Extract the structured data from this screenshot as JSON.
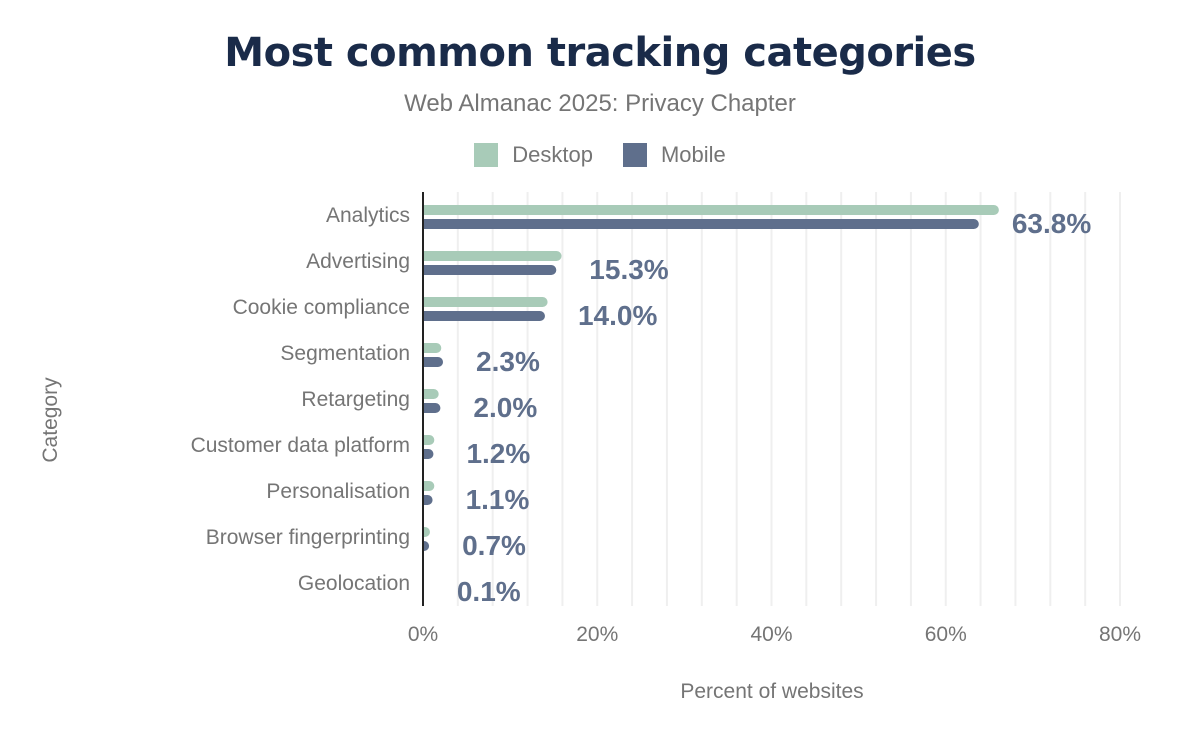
{
  "chart_data": {
    "type": "bar",
    "orientation": "horizontal",
    "title": "Most common tracking categories",
    "subtitle": "Web Almanac 2025: Privacy Chapter",
    "xlabel": "Percent of websites",
    "ylabel": "Category",
    "xlim": [
      0,
      80
    ],
    "xticks": [
      "0%",
      "20%",
      "40%",
      "60%",
      "80%"
    ],
    "grid": true,
    "legend_position": "top",
    "categories": [
      "Analytics",
      "Advertising",
      "Cookie compliance",
      "Segmentation",
      "Retargeting",
      "Customer data platform",
      "Personalisation",
      "Browser fingerprinting",
      "Geolocation"
    ],
    "series": [
      {
        "name": "Desktop",
        "color": "#a8cbb8",
        "values": [
          66.1,
          15.9,
          14.3,
          2.1,
          1.8,
          1.3,
          1.3,
          0.8,
          0.1
        ]
      },
      {
        "name": "Mobile",
        "color": "#5f6f8c",
        "values": [
          63.8,
          15.3,
          14.0,
          2.3,
          2.0,
          1.2,
          1.1,
          0.7,
          0.1
        ]
      }
    ],
    "data_labels": [
      "63.8%",
      "15.3%",
      "14.0%",
      "2.3%",
      "2.0%",
      "1.2%",
      "1.1%",
      "0.7%",
      "0.1%"
    ]
  }
}
